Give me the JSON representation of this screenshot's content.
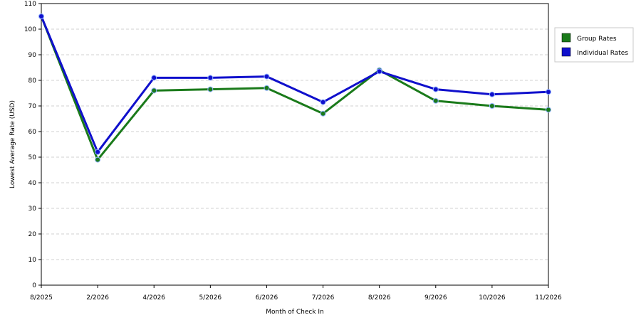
{
  "chart_data": {
    "type": "line",
    "categories": [
      "8/2025",
      "2/2026",
      "4/2026",
      "5/2026",
      "6/2026",
      "7/2026",
      "8/2026",
      "9/2026",
      "10/2026",
      "11/2026"
    ],
    "series": [
      {
        "name": "Group Rates",
        "color": "#1a7a1a",
        "values": [
          105,
          49,
          76,
          76.5,
          77,
          67,
          84,
          72,
          70,
          68.5
        ]
      },
      {
        "name": "Individual Rates",
        "color": "#1010cc",
        "values": [
          105,
          52,
          81,
          81,
          81.5,
          71.5,
          83.5,
          76.5,
          74.5,
          75.5
        ]
      }
    ],
    "xlabel": "Month of Check In",
    "ylabel": "Lowest Average Rate (USD)",
    "ylim": [
      0,
      110
    ],
    "yticks": [
      0,
      10,
      20,
      30,
      40,
      50,
      60,
      70,
      80,
      90,
      100,
      110
    ],
    "grid": "horizontal-dashed",
    "legend": "right"
  }
}
